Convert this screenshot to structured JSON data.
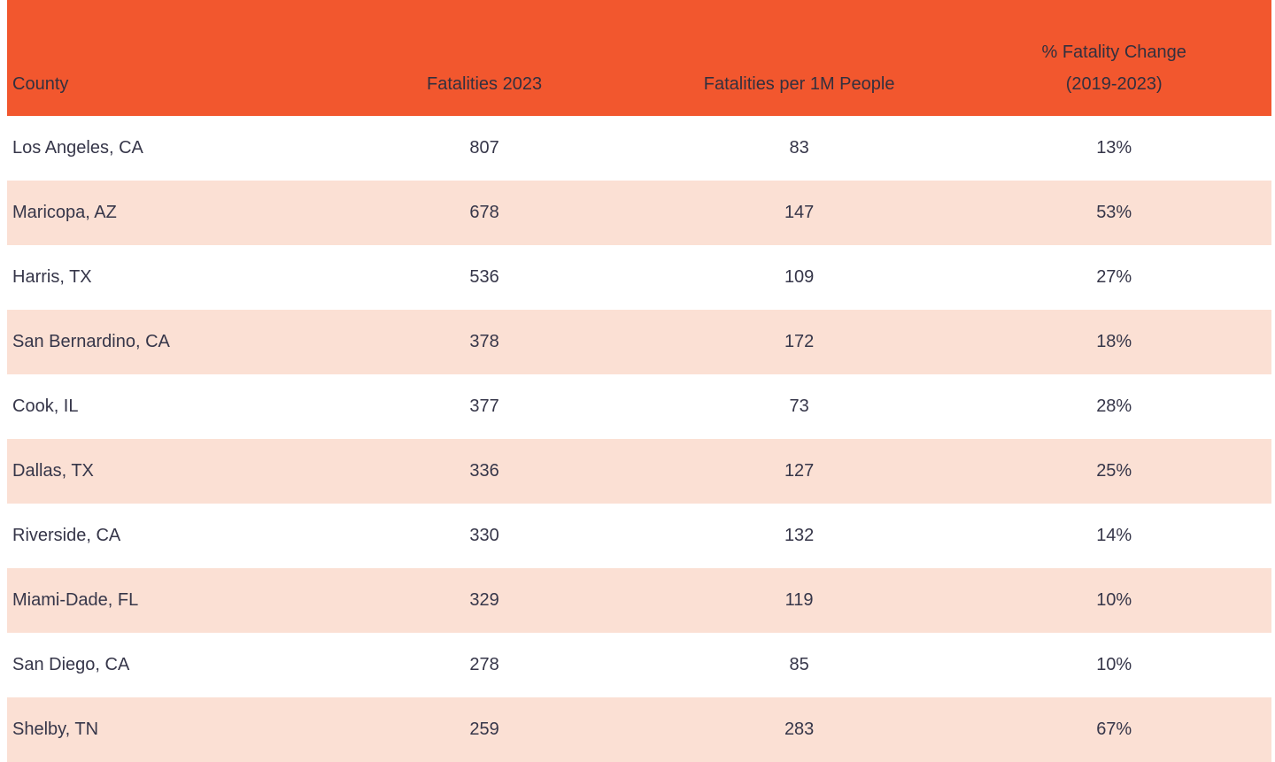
{
  "chart_data": {
    "type": "table",
    "columns": [
      "County",
      "Fatalities 2023",
      "Fatalities per 1M People",
      "% Fatality Change (2019-2023)"
    ],
    "rows": [
      [
        "Los Angeles, CA",
        "807",
        "83",
        "13%"
      ],
      [
        "Maricopa, AZ",
        "678",
        "147",
        "53%"
      ],
      [
        "Harris, TX",
        "536",
        "109",
        "27%"
      ],
      [
        "San Bernardino, CA",
        "378",
        "172",
        "18%"
      ],
      [
        "Cook, IL",
        "377",
        "73",
        "28%"
      ],
      [
        "Dallas, TX",
        "336",
        "127",
        "25%"
      ],
      [
        "Riverside, CA",
        "330",
        "132",
        "14%"
      ],
      [
        "Miami-Dade, FL",
        "329",
        "119",
        "10%"
      ],
      [
        "San Diego, CA",
        "278",
        "85",
        "10%"
      ],
      [
        "Shelby, TN",
        "259",
        "283",
        "67%"
      ]
    ]
  },
  "header": {
    "county": "County",
    "fatalities_2023": "Fatalities 2023",
    "per_1m": "Fatalities per 1M People",
    "pct_change_line1": "% Fatality Change",
    "pct_change_line2": "(2019-2023)"
  },
  "colors": {
    "header_bg": "#F2572E",
    "row_alt_bg": "#FBE0D4",
    "row_bg": "#FFFFFF",
    "text": "#363649"
  }
}
